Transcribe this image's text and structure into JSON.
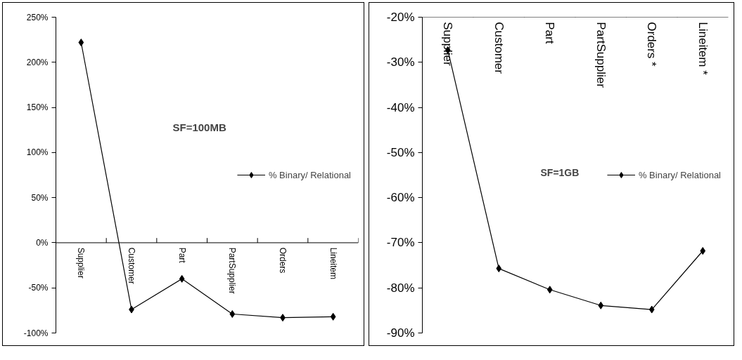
{
  "chart_data": [
    {
      "type": "line",
      "categories": [
        "Supplier",
        "Customer",
        "Part",
        "PartSupplier",
        "Orders",
        "Lineitem"
      ],
      "series": [
        {
          "name": "% Binary/ Relational",
          "color": "#000000",
          "values": [
            222,
            -74,
            -40,
            -79,
            -83,
            -82
          ]
        }
      ],
      "ylim": [
        -100,
        250
      ],
      "yticks": [
        {
          "value": -100,
          "label": "-100%"
        },
        {
          "value": -50,
          "label": "-50%"
        },
        {
          "value": 0,
          "label": "0%"
        },
        {
          "value": 50,
          "label": "50%"
        },
        {
          "value": 100,
          "label": "100%"
        },
        {
          "value": 150,
          "label": "150%"
        },
        {
          "value": 200,
          "label": "200%"
        },
        {
          "value": 250,
          "label": "250%"
        }
      ],
      "annotations": [
        "SF=100MB"
      ],
      "legend": "right",
      "marker": "diamond",
      "grid": false
    },
    {
      "type": "line",
      "categories": [
        "Supplier",
        "Customer",
        "Part",
        "PartSupplier",
        "Orders *",
        "Lineitem *"
      ],
      "series": [
        {
          "name": "% Binary/ Relational",
          "color": "#000000",
          "values": [
            -27.3,
            -75.7,
            -80.4,
            -83.9,
            -84.8,
            -71.8
          ]
        }
      ],
      "ylim": [
        -90,
        -20
      ],
      "yticks": [
        {
          "value": -90,
          "label": "-90%"
        },
        {
          "value": -80,
          "label": "-80%"
        },
        {
          "value": -70,
          "label": "-70%"
        },
        {
          "value": -60,
          "label": "-60%"
        },
        {
          "value": -50,
          "label": "-50%"
        },
        {
          "value": -40,
          "label": "-40%"
        },
        {
          "value": -30,
          "label": "-30%"
        },
        {
          "value": -20,
          "label": "-20%"
        }
      ],
      "annotations": [
        "SF=1GB"
      ],
      "legend": "right",
      "marker": "diamond",
      "grid": false
    }
  ]
}
